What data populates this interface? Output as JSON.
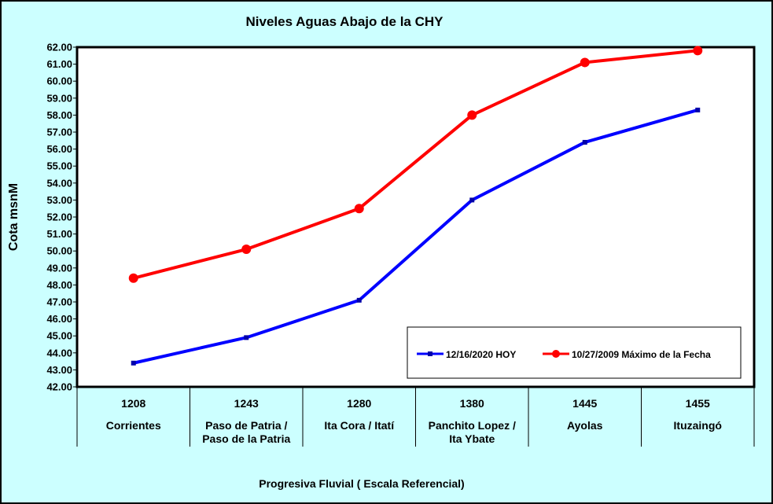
{
  "chart_data": {
    "type": "line",
    "title": "Niveles Aguas Abajo de la CHY",
    "xlabel": "Progresiva Fluvial ( Escala Referencial)",
    "ylabel": "Cota msnM",
    "ylim": [
      42,
      62
    ],
    "ystep": 1,
    "ytick_labels": [
      "42.00",
      "43.00",
      "44.00",
      "45.00",
      "46.00",
      "47.00",
      "48.00",
      "49.00",
      "50.00",
      "51.00",
      "52.00",
      "53.00",
      "54.00",
      "55.00",
      "56.00",
      "57.00",
      "58.00",
      "59.00",
      "60.00",
      "61.00",
      "62.00"
    ],
    "categories": [
      {
        "km": "1208",
        "name": [
          "Corrientes"
        ]
      },
      {
        "km": "1243",
        "name": [
          "Paso de Patria /",
          "Paso de la Patria"
        ]
      },
      {
        "km": "1280",
        "name": [
          "Ita Cora / Itatí"
        ]
      },
      {
        "km": "1380",
        "name": [
          "Panchito Lopez /",
          "Ita Ybate"
        ]
      },
      {
        "km": "1445",
        "name": [
          "Ayolas"
        ]
      },
      {
        "km": "1455",
        "name": [
          "Ituzaingó"
        ]
      }
    ],
    "series": [
      {
        "name": "12/16/2020 HOY",
        "color": "#0000FF",
        "marker": "square",
        "values": [
          43.4,
          44.9,
          47.1,
          53.0,
          56.4,
          58.3
        ]
      },
      {
        "name": "10/27/2009 Máximo de la Fecha",
        "color": "#FF0000",
        "marker": "circle",
        "values": [
          48.4,
          50.1,
          52.5,
          58.0,
          61.1,
          61.8
        ]
      }
    ],
    "grid": false,
    "legend_position": "bottom-right",
    "colors": {
      "background": "#CCFFFF",
      "plot_area": "#FFFFFF",
      "border": "#000000"
    }
  }
}
